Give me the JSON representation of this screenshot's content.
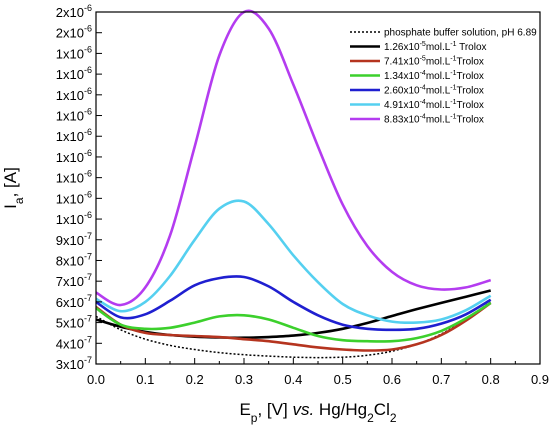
{
  "chart_data": {
    "type": "line",
    "title": "",
    "xlabel": {
      "main": "E",
      "sub": "p",
      "rest": ", [V] ",
      "italic": "vs.",
      "ref_a": " Hg/Hg",
      "ref_sub1": "2",
      "ref_b": "Cl",
      "ref_sub2": "2"
    },
    "ylabel": {
      "main": "I",
      "sub": "a",
      "rest": ", [A]"
    },
    "xlim": [
      0.0,
      0.9
    ],
    "ylim": [
      3e-07,
      2e-06
    ],
    "grid": false,
    "legend_position": "top-right",
    "x_ticks": [
      {
        "value": 0.0,
        "label": "0.0"
      },
      {
        "value": 0.1,
        "label": "0.1"
      },
      {
        "value": 0.2,
        "label": "0.2"
      },
      {
        "value": 0.3,
        "label": "0.3"
      },
      {
        "value": 0.4,
        "label": "0.4"
      },
      {
        "value": 0.5,
        "label": "0.5"
      },
      {
        "value": 0.6,
        "label": "0.6"
      },
      {
        "value": 0.7,
        "label": "0.7"
      },
      {
        "value": 0.8,
        "label": "0.8"
      },
      {
        "value": 0.9,
        "label": "0.9"
      }
    ],
    "y_ticks": [
      {
        "value": 3e-07,
        "base": "3x10",
        "exp": "-7"
      },
      {
        "value": 4e-07,
        "base": "4x10",
        "exp": "-7"
      },
      {
        "value": 5e-07,
        "base": "5x10",
        "exp": "-7"
      },
      {
        "value": 6e-07,
        "base": "6x10",
        "exp": "-7"
      },
      {
        "value": 7e-07,
        "base": "7x10",
        "exp": "-7"
      },
      {
        "value": 8e-07,
        "base": "8x10",
        "exp": "-7"
      },
      {
        "value": 9e-07,
        "base": "9x10",
        "exp": "-7"
      },
      {
        "value": 1e-06,
        "base": "1x10",
        "exp": "-6"
      },
      {
        "value": 1.1e-06,
        "base": "1x10",
        "exp": "-6"
      },
      {
        "value": 1.2e-06,
        "base": "1x10",
        "exp": "-6"
      },
      {
        "value": 1.3e-06,
        "base": "1x10",
        "exp": "-6"
      },
      {
        "value": 1.4e-06,
        "base": "1x10",
        "exp": "-6"
      },
      {
        "value": 1.5e-06,
        "base": "1x10",
        "exp": "-6"
      },
      {
        "value": 1.6e-06,
        "base": "1x10",
        "exp": "-6"
      },
      {
        "value": 1.7e-06,
        "base": "1x10",
        "exp": "-6"
      },
      {
        "value": 1.8e-06,
        "base": "1x10",
        "exp": "-6"
      },
      {
        "value": 1.9e-06,
        "base": "2x10",
        "exp": "-6"
      },
      {
        "value": 2e-06,
        "base": "2x10",
        "exp": "-6"
      }
    ],
    "x": [
      0.0,
      0.05,
      0.1,
      0.15,
      0.2,
      0.25,
      0.3,
      0.35,
      0.4,
      0.45,
      0.5,
      0.55,
      0.6,
      0.65,
      0.7,
      0.75,
      0.8
    ],
    "series": [
      {
        "name": [
          "phosphate buffer solution, pH 6.89"
        ],
        "color": "#000000",
        "dashed": true,
        "values": [
          5.3e-07,
          4.65e-07,
          4.2e-07,
          3.9e-07,
          3.7e-07,
          3.55e-07,
          3.45e-07,
          3.38e-07,
          3.33e-07,
          3.31e-07,
          3.33e-07,
          3.42e-07,
          3.62e-07,
          3.95e-07,
          4.45e-07,
          5.15e-07,
          6e-07
        ]
      },
      {
        "name": [
          "1.26x10",
          "-5",
          "mol.L",
          "-1",
          " Trolox"
        ],
        "color": "#000000",
        "dashed": false,
        "values": [
          5.15e-07,
          4.8e-07,
          4.55e-07,
          4.4e-07,
          4.32e-07,
          4.28e-07,
          4.27e-07,
          4.3e-07,
          4.37e-07,
          4.5e-07,
          4.7e-07,
          4.98e-07,
          5.32e-07,
          5.65e-07,
          5.95e-07,
          6.25e-07,
          6.55e-07
        ]
      },
      {
        "name": [
          "7.41x10",
          "-5",
          "mol.L",
          "-1",
          "Trolox"
        ],
        "color": "#b5341f",
        "dashed": false,
        "values": [
          5.75e-07,
          4.9e-07,
          4.5e-07,
          4.4e-07,
          4.35e-07,
          4.3e-07,
          4.2e-07,
          4.1e-07,
          3.95e-07,
          3.8e-07,
          3.7e-07,
          3.65e-07,
          3.7e-07,
          3.95e-07,
          4.4e-07,
          5.1e-07,
          5.95e-07
        ]
      },
      {
        "name": [
          "1.34x10",
          "-4",
          "mol.L",
          "-1",
          "Trolox"
        ],
        "color": "#3cd02c",
        "dashed": false,
        "values": [
          5.7e-07,
          4.9e-07,
          4.7e-07,
          4.75e-07,
          5e-07,
          5.3e-07,
          5.35e-07,
          5.15e-07,
          4.75e-07,
          4.35e-07,
          4.15e-07,
          4.1e-07,
          4.1e-07,
          4.25e-07,
          4.6e-07,
          5.2e-07,
          5.95e-07
        ]
      },
      {
        "name": [
          "2.60x10",
          "-4",
          "mol.L",
          "-1",
          "Trolox"
        ],
        "color": "#1f1fd0",
        "dashed": false,
        "values": [
          6e-07,
          5.25e-07,
          5.4e-07,
          6.05e-07,
          6.8e-07,
          7.15e-07,
          7.2e-07,
          6.75e-07,
          6e-07,
          5.35e-07,
          4.9e-07,
          4.7e-07,
          4.65e-07,
          4.7e-07,
          4.95e-07,
          5.4e-07,
          6.1e-07
        ]
      },
      {
        "name": [
          "4.91x10",
          "-4",
          "mol.L",
          "-1",
          "Trolox"
        ],
        "color": "#55d0f0",
        "dashed": false,
        "values": [
          6.15e-07,
          5.55e-07,
          6e-07,
          7.25e-07,
          9e-07,
          1.05e-06,
          1.085e-06,
          9.75e-07,
          8.25e-07,
          6.95e-07,
          5.9e-07,
          5.35e-07,
          5.05e-07,
          5e-07,
          5.15e-07,
          5.6e-07,
          6.3e-07
        ]
      },
      {
        "name": [
          "8.83x10",
          "-4",
          "mol.L",
          "-1",
          "Trolox"
        ],
        "color": "#b43cf0",
        "dashed": false,
        "values": [
          6.45e-07,
          5.85e-07,
          6.7e-07,
          9.2e-07,
          1.35e-06,
          1.79e-06,
          2e-06,
          1.92e-06,
          1.65e-06,
          1.35e-06,
          1.07e-06,
          8.7e-07,
          7.45e-07,
          6.8e-07,
          6.6e-07,
          6.7e-07,
          7.05e-07
        ]
      }
    ]
  }
}
